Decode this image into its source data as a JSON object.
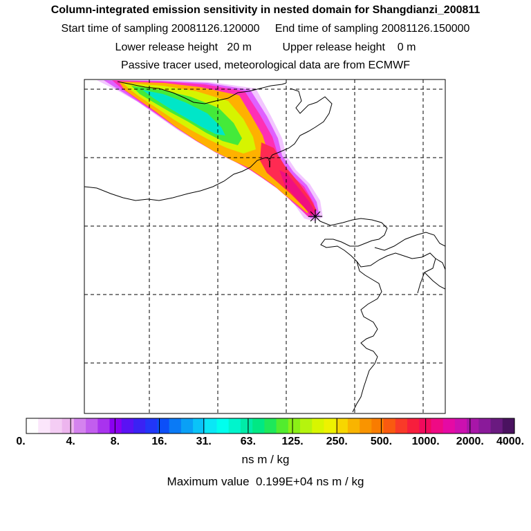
{
  "header": {
    "title": "Column-integrated emission sensitivity in nested domain for Shangdianzi_200811",
    "sampling_line": "Start time of sampling 20081126.120000     End time of sampling 20081126.150000",
    "release_line": "Lower release height   20 m          Upper release height    0 m",
    "tracer_line": "Passive tracer used, meteorological data are from ECMWF"
  },
  "colorbar": {
    "tick_labels": [
      "0.",
      "4.",
      "8.",
      "16.",
      "31.",
      "63.",
      "125.",
      "250.",
      "500.",
      "1000.",
      "2000.",
      "4000."
    ],
    "units": "ns m / kg",
    "colors": [
      "#ffffff",
      "#fbe6fb",
      "#f4cdf4",
      "#edb5ee",
      "#d483ee",
      "#c25eee",
      "#a933ee",
      "#8a00f0",
      "#5a12f4",
      "#3a22f4",
      "#2236f8",
      "#0c4ff8",
      "#0a7af6",
      "#0aa0f6",
      "#0ac3f8",
      "#0ae7f6",
      "#00ffee",
      "#00f5cc",
      "#00eca8",
      "#00e884",
      "#1ee85a",
      "#52ec2e",
      "#8af016",
      "#b5f40e",
      "#d8f600",
      "#eef200",
      "#f7d600",
      "#f9b400",
      "#f99400",
      "#f97c00",
      "#f95a10",
      "#f93a28",
      "#f71e3c",
      "#f10a5c",
      "#ef0a84",
      "#e50aa4",
      "#cc10b0",
      "#a816a8",
      "#8a1a9a",
      "#6a1a80",
      "#4a1260"
    ]
  },
  "summary": {
    "max_value_line": "Maximum value  0.199E+04 ns m / kg"
  },
  "map": {
    "receptor": "Shangdianzi",
    "receptor_marker": "asterisk",
    "plume_colors": {
      "edge": "#f2c6ff",
      "low": "#e060ff",
      "mid_low": "#ff2fb5",
      "mid": "#ffb100",
      "mid_high": "#d6f400",
      "high": "#44ea3a",
      "peak": "#00e6c8",
      "core": "#ff2a52",
      "source": "#f01080"
    }
  }
}
